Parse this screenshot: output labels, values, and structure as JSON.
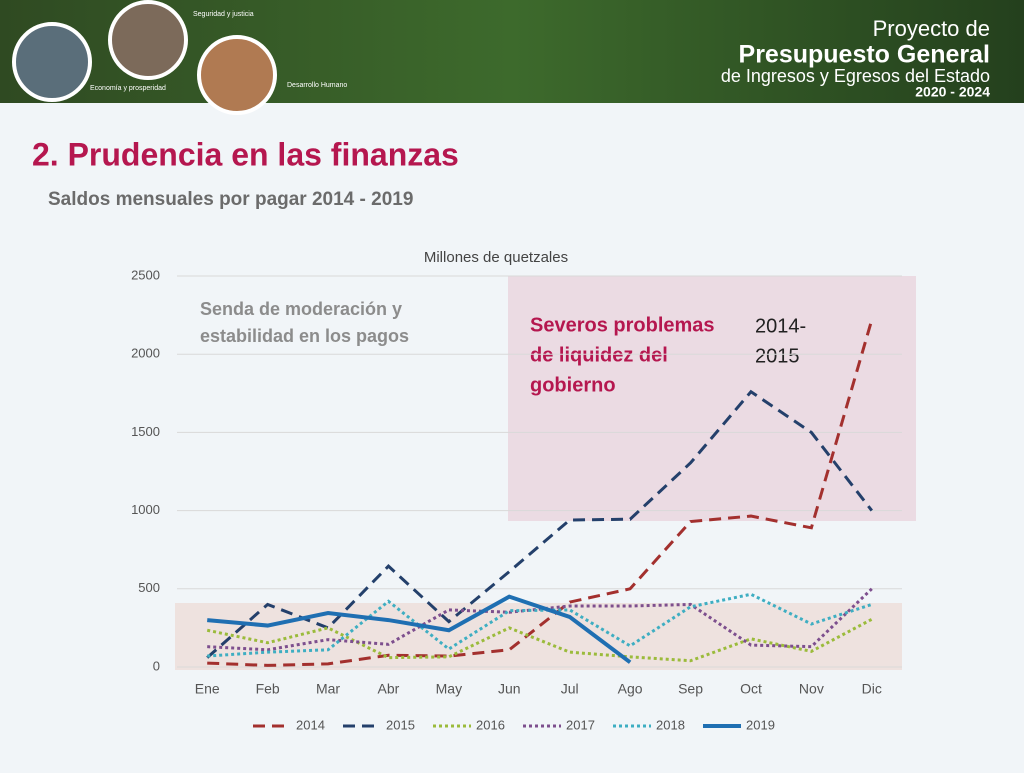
{
  "header": {
    "icons": [
      "Seguridad y justicia",
      "Economía y prosperidad",
      "Desarrollo Humano"
    ],
    "title_lines": [
      "Proyecto de",
      "Presupuesto General",
      "de Ingresos y Egresos del Estado",
      "2020 - 2024"
    ]
  },
  "slide_title": "2. Prudencia en las finanzas",
  "slide_subtitle": "Saldos mensuales por pagar 2014 - 2019",
  "chart_data": {
    "type": "line",
    "title": "Millones de quetzales",
    "categories": [
      "Ene",
      "Feb",
      "Mar",
      "Abr",
      "May",
      "Jun",
      "Jul",
      "Ago",
      "Sep",
      "Oct",
      "Nov",
      "Dic"
    ],
    "series": [
      {
        "name": "2014",
        "color": "#a3302e",
        "style": "dashed",
        "values": [
          25,
          10,
          20,
          75,
          70,
          110,
          415,
          500,
          930,
          965,
          890,
          2220
        ]
      },
      {
        "name": "2015",
        "color": "#24406b",
        "style": "dashed",
        "values": [
          60,
          400,
          250,
          645,
          290,
          610,
          940,
          945,
          1305,
          1760,
          1500,
          1000
        ]
      },
      {
        "name": "2016",
        "color": "#9bbb3b",
        "style": "dotted",
        "values": [
          235,
          155,
          250,
          60,
          65,
          250,
          95,
          65,
          40,
          180,
          100,
          305
        ]
      },
      {
        "name": "2017",
        "color": "#7d4f8e",
        "style": "dotted",
        "values": [
          130,
          110,
          175,
          145,
          365,
          350,
          390,
          390,
          400,
          140,
          130,
          500
        ]
      },
      {
        "name": "2018",
        "color": "#3eaec2",
        "style": "dotted",
        "values": [
          70,
          95,
          110,
          420,
          115,
          360,
          365,
          135,
          385,
          465,
          275,
          400
        ]
      },
      {
        "name": "2019",
        "color": "#1f6fb2",
        "style": "solid",
        "values": [
          300,
          265,
          345,
          300,
          235,
          450,
          320,
          30,
          null,
          null,
          null,
          null
        ]
      }
    ],
    "ylim": [
      0,
      2500
    ],
    "yticks": [
      0,
      500,
      1000,
      1500,
      2000,
      2500
    ],
    "grid": true,
    "legend": "bottom",
    "annotations": [
      {
        "lines": [
          "Senda de moderación y",
          "estabilidad en los pagos"
        ]
      },
      {
        "lines": [
          "Severos problemas",
          "de liquidez del",
          "gobierno"
        ]
      },
      {
        "lines": [
          "2014-",
          "2015"
        ]
      }
    ]
  }
}
